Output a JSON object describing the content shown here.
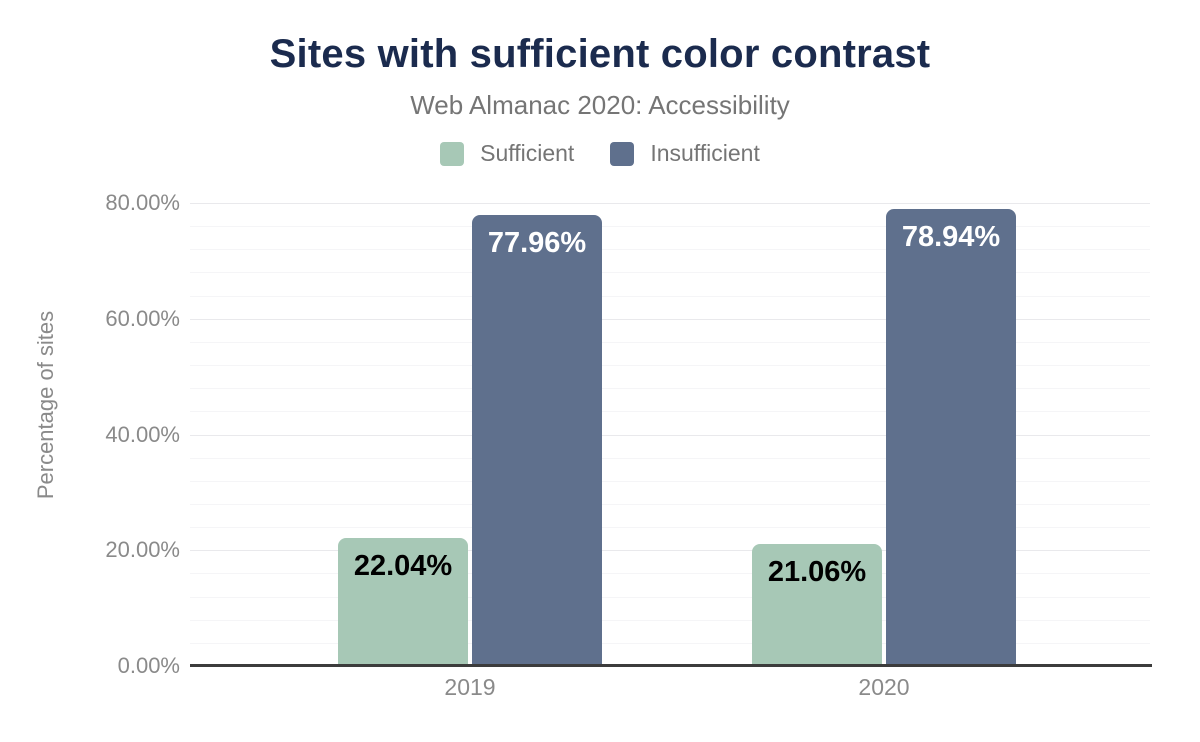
{
  "header": {
    "title": "Sites with sufficient color contrast",
    "subtitle": "Web Almanac 2020: Accessibility"
  },
  "colors": {
    "title_navy": "#1b2b4e",
    "muted_text": "#757575",
    "axis_text": "#8a8a8a",
    "axis_line": "#3c3c3c",
    "gridline_minor": "#f5f5f7",
    "gridline_major": "#e9e9ec"
  },
  "chart_data": {
    "type": "bar",
    "title": "Sites with sufficient color contrast",
    "subtitle": "Web Almanac 2020: Accessibility",
    "categories": [
      "2019",
      "2020"
    ],
    "series": [
      {
        "name": "Sufficient",
        "color": "#a7c8b6",
        "label_color": "#000000",
        "values": [
          22.04,
          21.06
        ],
        "labels": [
          "22.04%",
          "21.06%"
        ]
      },
      {
        "name": "Insufficient",
        "color": "#5f708d",
        "label_color": "#ffffff",
        "values": [
          77.96,
          78.94
        ],
        "labels": [
          "77.96%",
          "78.94%"
        ]
      }
    ],
    "xlabel": "",
    "ylabel": "Percentage of sites",
    "ylim": [
      0,
      80
    ],
    "yticks": [
      "0.00%",
      "20.00%",
      "40.00%",
      "60.00%",
      "80.00%"
    ],
    "ytick_values": [
      0,
      20,
      40,
      60,
      80
    ],
    "grid": "horizontal, minor every 4%, major every 20%",
    "legend_position": "top"
  }
}
